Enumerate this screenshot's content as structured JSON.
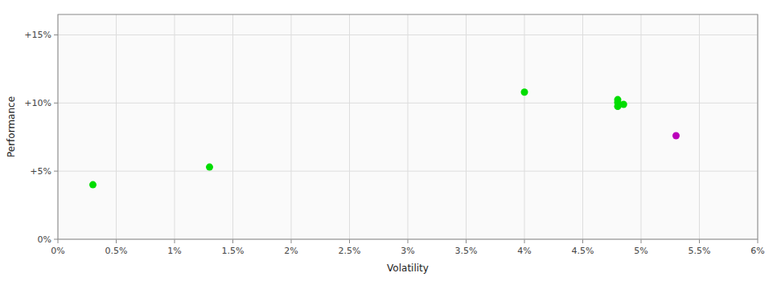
{
  "chart_data": {
    "type": "scatter",
    "xlabel": "Volatility",
    "ylabel": "Performance",
    "xlim": [
      0,
      0.06
    ],
    "ylim": [
      0,
      0.165
    ],
    "xticks": [
      {
        "value": 0.0,
        "label": "0%"
      },
      {
        "value": 0.005,
        "label": "0.5%"
      },
      {
        "value": 0.01,
        "label": "1%"
      },
      {
        "value": 0.015,
        "label": "1.5%"
      },
      {
        "value": 0.02,
        "label": "2%"
      },
      {
        "value": 0.025,
        "label": "2.5%"
      },
      {
        "value": 0.03,
        "label": "3%"
      },
      {
        "value": 0.035,
        "label": "3.5%"
      },
      {
        "value": 0.04,
        "label": "4%"
      },
      {
        "value": 0.045,
        "label": "4.5%"
      },
      {
        "value": 0.05,
        "label": "5%"
      },
      {
        "value": 0.055,
        "label": "5.5%"
      },
      {
        "value": 0.06,
        "label": "6%"
      }
    ],
    "yticks": [
      {
        "value": 0.0,
        "label": "0%"
      },
      {
        "value": 0.05,
        "label": "+5%"
      },
      {
        "value": 0.1,
        "label": "+10%"
      },
      {
        "value": 0.15,
        "label": "+15%"
      }
    ],
    "grid": true,
    "series": [
      {
        "color": "#00dd00",
        "x": [
          0.003,
          0.013,
          0.04,
          0.048,
          0.048,
          0.048,
          0.0485
        ],
        "values": [
          0.04,
          0.053,
          0.108,
          0.1025,
          0.1005,
          0.0975,
          0.099
        ]
      },
      {
        "color": "#bb00bb",
        "x": [
          0.053
        ],
        "values": [
          0.076
        ]
      }
    ]
  }
}
